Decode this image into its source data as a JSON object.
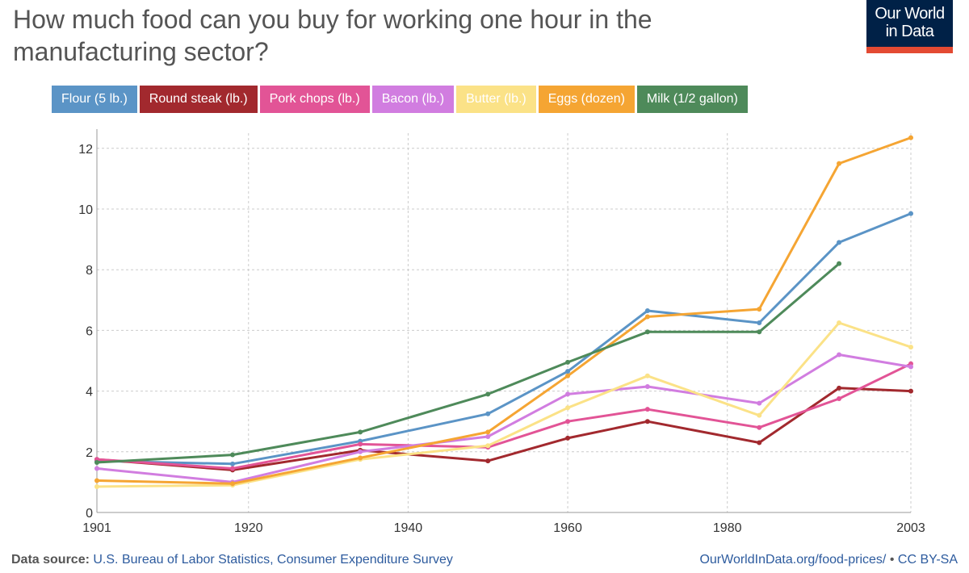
{
  "title": "How much food can you buy for working one hour in the manufacturing sector?",
  "logo": {
    "line1": "Our World",
    "line2": "in Data"
  },
  "footer": {
    "source_label": "Data source:",
    "source_text": "U.S. Bureau of Labor Statistics, Consumer Expenditure Survey",
    "link": "OurWorldInData.org/food-prices/",
    "separator": "•",
    "license": "CC BY-SA"
  },
  "chart_data": {
    "type": "line",
    "xlim": [
      1901,
      2003
    ],
    "ylim": [
      0,
      12.5
    ],
    "x_ticks": [
      1901,
      1920,
      1940,
      1960,
      1980,
      2003
    ],
    "y_ticks": [
      0,
      2,
      4,
      6,
      8,
      10,
      12
    ],
    "grid": true,
    "legend_position": "top",
    "series": [
      {
        "name": "Flour (5 lb.)",
        "color": "#5b94c6",
        "points": [
          [
            1901,
            1.7
          ],
          [
            1918,
            1.6
          ],
          [
            1934,
            2.35
          ],
          [
            1950,
            3.25
          ],
          [
            1960,
            4.65
          ],
          [
            1970,
            6.65
          ],
          [
            1984,
            6.25
          ],
          [
            1994,
            8.9
          ],
          [
            2003,
            9.85
          ]
        ]
      },
      {
        "name": "Round steak (lb.)",
        "color": "#a2292e",
        "points": [
          [
            1901,
            1.75
          ],
          [
            1918,
            1.4
          ],
          [
            1934,
            2.05
          ],
          [
            1950,
            1.7
          ],
          [
            1960,
            2.45
          ],
          [
            1970,
            3.0
          ],
          [
            1984,
            2.3
          ],
          [
            1994,
            4.1
          ],
          [
            2003,
            4.0
          ]
        ]
      },
      {
        "name": "Pork chops (lb.)",
        "color": "#e25496",
        "points": [
          [
            1901,
            1.75
          ],
          [
            1918,
            1.45
          ],
          [
            1934,
            2.25
          ],
          [
            1950,
            2.15
          ],
          [
            1960,
            3.0
          ],
          [
            1970,
            3.4
          ],
          [
            1984,
            2.8
          ],
          [
            1994,
            3.75
          ],
          [
            2003,
            4.9
          ]
        ]
      },
      {
        "name": "Bacon (lb.)",
        "color": "#d17de0",
        "points": [
          [
            1901,
            1.45
          ],
          [
            1918,
            1.0
          ],
          [
            1934,
            2.0
          ],
          [
            1950,
            2.5
          ],
          [
            1960,
            3.9
          ],
          [
            1970,
            4.15
          ],
          [
            1984,
            3.6
          ],
          [
            1994,
            5.2
          ],
          [
            2003,
            4.8
          ]
        ]
      },
      {
        "name": "Butter (lb.)",
        "color": "#fbe287",
        "points": [
          [
            1901,
            0.85
          ],
          [
            1918,
            0.9
          ],
          [
            1934,
            1.75
          ],
          [
            1950,
            2.2
          ],
          [
            1960,
            3.45
          ],
          [
            1970,
            4.5
          ],
          [
            1984,
            3.2
          ],
          [
            1994,
            6.25
          ],
          [
            2003,
            5.45
          ]
        ]
      },
      {
        "name": "Eggs (dozen)",
        "color": "#f5a533",
        "points": [
          [
            1901,
            1.05
          ],
          [
            1918,
            0.95
          ],
          [
            1934,
            1.8
          ],
          [
            1950,
            2.65
          ],
          [
            1960,
            4.5
          ],
          [
            1970,
            6.45
          ],
          [
            1984,
            6.7
          ],
          [
            1994,
            11.5
          ],
          [
            2003,
            12.35
          ]
        ]
      },
      {
        "name": "Milk (1/2 gallon)",
        "color": "#4e8a5a",
        "points": [
          [
            1901,
            1.65
          ],
          [
            1918,
            1.9
          ],
          [
            1934,
            2.65
          ],
          [
            1950,
            3.9
          ],
          [
            1960,
            4.95
          ],
          [
            1970,
            5.95
          ],
          [
            1984,
            5.95
          ],
          [
            1994,
            8.2
          ]
        ]
      }
    ]
  }
}
